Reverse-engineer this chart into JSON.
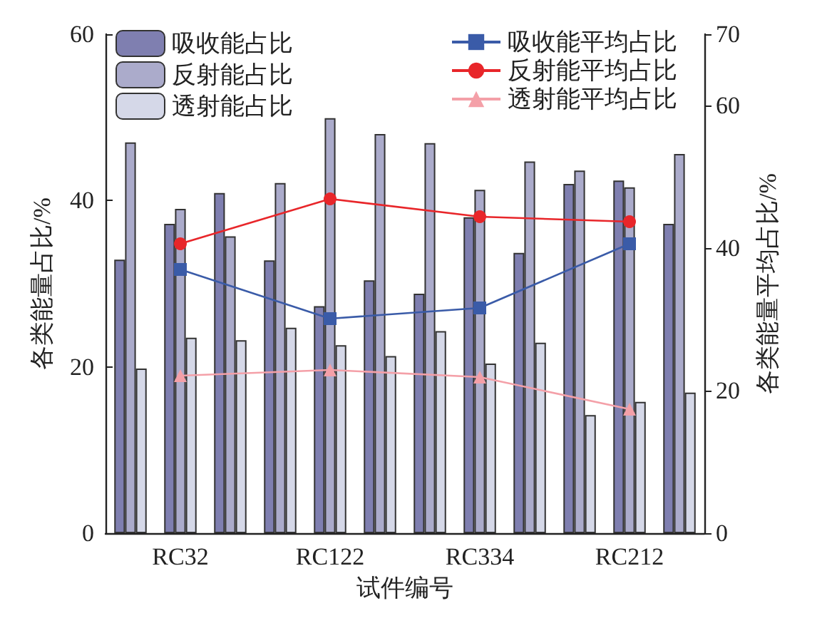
{
  "chart_data": {
    "type": "bar",
    "xlabel": "试件编号",
    "ylabel": "各类能量占比/%",
    "y2label": "各类能量平均占比/%",
    "categories": [
      null,
      "RC32",
      null,
      null,
      "RC122",
      null,
      null,
      "RC334",
      null,
      null,
      "RC212",
      null
    ],
    "series": [
      {
        "name": "吸收能占比",
        "color": "#7f7fb0",
        "values": [
          32.9,
          37.2,
          40.9,
          32.8,
          27.3,
          30.4,
          28.8,
          38.0,
          33.7,
          42.0,
          42.4,
          37.2
        ]
      },
      {
        "name": "反射能占比",
        "color": "#ababcb",
        "values": [
          47.0,
          39.0,
          35.7,
          42.1,
          49.9,
          48.0,
          46.9,
          41.3,
          44.7,
          43.6,
          41.6,
          45.6
        ]
      },
      {
        "name": "透射能占比",
        "color": "#d5d8e8",
        "values": [
          19.8,
          23.5,
          23.2,
          24.7,
          22.6,
          21.3,
          24.3,
          20.4,
          22.9,
          14.2,
          15.8,
          16.9
        ]
      },
      {
        "name": "吸收能平均占比",
        "type": "line",
        "axis": "y2",
        "marker": "square",
        "color": "#3a5ba8",
        "values": [
          null,
          37.0,
          null,
          null,
          30.1,
          null,
          null,
          31.6,
          null,
          null,
          40.6,
          null
        ]
      },
      {
        "name": "反射能平均占比",
        "type": "line",
        "axis": "y2",
        "marker": "circle",
        "color": "#e8262a",
        "values": [
          null,
          40.6,
          null,
          null,
          46.9,
          null,
          null,
          44.4,
          null,
          null,
          43.7,
          null
        ]
      },
      {
        "name": "透射能平均占比",
        "type": "line",
        "axis": "y2",
        "marker": "triangle",
        "color": "#f4a0a8",
        "values": [
          null,
          22.1,
          null,
          null,
          22.9,
          null,
          null,
          21.9,
          null,
          null,
          17.4,
          null
        ]
      }
    ],
    "ylim": [
      0,
      60
    ],
    "yticks": [
      0,
      20,
      40,
      60
    ],
    "y2lim": [
      0,
      70
    ],
    "y2ticks": [
      0,
      20,
      40,
      60,
      70
    ],
    "legend": "top",
    "grid": false
  }
}
